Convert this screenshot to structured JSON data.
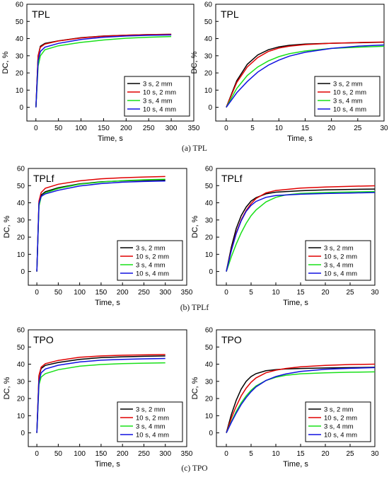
{
  "captions": [
    "(a) TPL",
    "(b) TPLf",
    "(c) TPO"
  ],
  "legend_entries": [
    "3 s, 2 mm",
    "10 s, 2 mm",
    "3 s, 4 mm",
    "10 s, 4 mm"
  ],
  "colors": {
    "3 s, 2 mm": "#000000",
    "10 s, 2 mm": "#e00000",
    "3 s, 4 mm": "#19e019",
    "10 s, 4 mm": "#1010e0"
  },
  "chart_data": [
    {
      "type": "line",
      "title": "TPL",
      "xlabel": "Time, s",
      "ylabel": "DC, %",
      "xlim": [
        -20,
        350
      ],
      "ylim": [
        -8,
        60
      ],
      "xticks": [
        0,
        50,
        100,
        150,
        200,
        250,
        300,
        350
      ],
      "yticks": [
        0,
        10,
        20,
        30,
        40,
        50,
        60
      ],
      "legend_position": "bottom-right",
      "series": [
        {
          "name": "3 s, 2 mm",
          "x": [
            0,
            5,
            10,
            20,
            50,
            100,
            150,
            200,
            250,
            300
          ],
          "y": [
            0,
            30,
            35.5,
            37.2,
            38.7,
            40.5,
            41.5,
            42,
            42.3,
            42.5
          ]
        },
        {
          "name": "10 s, 2 mm",
          "x": [
            0,
            5,
            10,
            20,
            50,
            100,
            150,
            200,
            250,
            300
          ],
          "y": [
            0,
            30,
            35,
            36.8,
            38.6,
            40.4,
            41.4,
            42,
            42.3,
            42.5
          ]
        },
        {
          "name": "3 s, 4 mm",
          "x": [
            0,
            5,
            10,
            20,
            50,
            100,
            150,
            200,
            250,
            300
          ],
          "y": [
            0,
            24,
            30,
            33.5,
            35.8,
            37.8,
            39.2,
            40.2,
            40.8,
            41.2
          ]
        },
        {
          "name": "10 s, 4 mm",
          "x": [
            0,
            5,
            10,
            20,
            50,
            100,
            150,
            200,
            250,
            300
          ],
          "y": [
            0,
            27,
            32.5,
            35,
            37.2,
            39.5,
            40.8,
            41.5,
            41.9,
            42.1
          ]
        }
      ]
    },
    {
      "type": "line",
      "title": "TPL",
      "xlabel": "Time, s",
      "ylabel": "DC, %",
      "xlim": [
        -2,
        30
      ],
      "ylim": [
        -8,
        60
      ],
      "xticks": [
        0,
        5,
        10,
        15,
        20,
        25,
        30
      ],
      "yticks": [
        0,
        10,
        20,
        30,
        40,
        50,
        60
      ],
      "legend_position": "bottom-right",
      "series": [
        {
          "name": "3 s, 2 mm",
          "x": [
            0,
            2,
            4,
            6,
            8,
            10,
            12,
            15,
            20,
            25,
            30
          ],
          "y": [
            0,
            15.5,
            25,
            30.5,
            33.5,
            35.2,
            36.1,
            36.8,
            37.3,
            37.6,
            37.9
          ]
        },
        {
          "name": "10 s, 2 mm",
          "x": [
            0,
            2,
            4,
            6,
            8,
            10,
            12,
            15,
            20,
            25,
            30
          ],
          "y": [
            0,
            14.5,
            23.5,
            29,
            32.5,
            34.5,
            35.6,
            36.5,
            37.3,
            37.7,
            38
          ]
        },
        {
          "name": "3 s, 4 mm",
          "x": [
            0,
            2,
            4,
            6,
            8,
            10,
            12,
            15,
            20,
            25,
            30
          ],
          "y": [
            0,
            11,
            18.5,
            23.5,
            27,
            29.5,
            31.2,
            32.8,
            34.3,
            35,
            35.5
          ]
        },
        {
          "name": "10 s, 4 mm",
          "x": [
            0,
            2,
            4,
            6,
            8,
            10,
            12,
            15,
            20,
            25,
            30
          ],
          "y": [
            0,
            8.5,
            15,
            20.5,
            24.5,
            27.5,
            29.8,
            32,
            34.3,
            35.6,
            36.3
          ]
        }
      ]
    },
    {
      "type": "line",
      "title": "TPLf",
      "xlabel": "Time, s",
      "ylabel": "DC, %",
      "xlim": [
        -20,
        350
      ],
      "ylim": [
        -8,
        60
      ],
      "xticks": [
        0,
        50,
        100,
        150,
        200,
        250,
        300,
        350
      ],
      "yticks": [
        0,
        10,
        20,
        30,
        40,
        50,
        60
      ],
      "legend_position": "bottom-right",
      "series": [
        {
          "name": "3 s, 2 mm",
          "x": [
            0,
            5,
            10,
            20,
            50,
            100,
            150,
            200,
            250,
            300
          ],
          "y": [
            0,
            40,
            44.5,
            46.5,
            48.8,
            51,
            52.2,
            52.8,
            53.1,
            53.3
          ]
        },
        {
          "name": "10 s, 2 mm",
          "x": [
            0,
            5,
            10,
            20,
            50,
            100,
            150,
            200,
            250,
            300
          ],
          "y": [
            0,
            41,
            46,
            48.5,
            50.8,
            52.8,
            54,
            54.6,
            55,
            55.3
          ]
        },
        {
          "name": "3 s, 4 mm",
          "x": [
            0,
            5,
            10,
            20,
            50,
            100,
            150,
            200,
            250,
            300
          ],
          "y": [
            0,
            38,
            43.5,
            45.8,
            48.3,
            50.8,
            52.1,
            52.9,
            53.4,
            53.7
          ]
        },
        {
          "name": "10 s, 4 mm",
          "x": [
            0,
            5,
            10,
            20,
            50,
            100,
            150,
            200,
            250,
            300
          ],
          "y": [
            0,
            39.5,
            43.8,
            45.2,
            47.3,
            49.8,
            51.2,
            52,
            52.4,
            52.7
          ]
        }
      ]
    },
    {
      "type": "line",
      "title": "TPLf",
      "xlabel": "Time, s",
      "ylabel": "DC, %",
      "xlim": [
        -2,
        30
      ],
      "ylim": [
        -8,
        60
      ],
      "xticks": [
        0,
        5,
        10,
        15,
        20,
        25,
        30
      ],
      "yticks": [
        0,
        10,
        20,
        30,
        40,
        50,
        60
      ],
      "legend_position": "bottom-right",
      "series": [
        {
          "name": "3 s, 2 mm",
          "x": [
            0,
            1,
            2,
            3,
            4,
            5,
            6,
            8,
            10,
            15,
            20,
            25,
            30
          ],
          "y": [
            0,
            14,
            25,
            32.5,
            37.5,
            41,
            43,
            45.2,
            46.2,
            47,
            47.5,
            47.8,
            48
          ]
        },
        {
          "name": "10 s, 2 mm",
          "x": [
            0,
            1,
            2,
            3,
            4,
            5,
            6,
            8,
            10,
            15,
            20,
            25,
            30
          ],
          "y": [
            0,
            12.5,
            22.5,
            30,
            35.5,
            39.5,
            42.5,
            45.8,
            47.2,
            48.6,
            49.2,
            49.6,
            49.9
          ]
        },
        {
          "name": "3 s, 4 mm",
          "x": [
            0,
            1,
            2,
            3,
            4,
            5,
            6,
            8,
            10,
            12,
            15,
            20,
            25,
            30
          ],
          "y": [
            0,
            8.5,
            16,
            22.5,
            28,
            32.5,
            35.8,
            40.5,
            43.2,
            44.6,
            45.5,
            46,
            46.3,
            46.5
          ]
        },
        {
          "name": "10 s, 4 mm",
          "x": [
            0,
            1,
            2,
            3,
            4,
            5,
            6,
            8,
            10,
            15,
            20,
            25,
            30
          ],
          "y": [
            0,
            12,
            22,
            29.5,
            35,
            38.5,
            40.8,
            43.2,
            44.2,
            45,
            45.4,
            45.7,
            46
          ]
        }
      ]
    },
    {
      "type": "line",
      "title": "TPO",
      "xlabel": "Time, s",
      "ylabel": "DC, %",
      "xlim": [
        -20,
        350
      ],
      "ylim": [
        -8,
        60
      ],
      "xticks": [
        0,
        50,
        100,
        150,
        200,
        250,
        300,
        350
      ],
      "yticks": [
        0,
        10,
        20,
        30,
        40,
        50,
        60
      ],
      "legend_position": "bottom-right",
      "series": [
        {
          "name": "3 s, 2 mm",
          "x": [
            0,
            5,
            10,
            20,
            50,
            100,
            150,
            200,
            250,
            300
          ],
          "y": [
            0,
            33,
            37.5,
            39.3,
            41,
            42.8,
            43.8,
            44.3,
            44.6,
            44.8
          ]
        },
        {
          "name": "10 s, 2 mm",
          "x": [
            0,
            5,
            10,
            20,
            50,
            100,
            150,
            200,
            250,
            300
          ],
          "y": [
            0,
            33.5,
            38.3,
            40.3,
            42.2,
            44,
            44.8,
            45.2,
            45.4,
            45.6
          ]
        },
        {
          "name": "3 s, 4 mm",
          "x": [
            0,
            5,
            10,
            20,
            50,
            100,
            150,
            200,
            250,
            300
          ],
          "y": [
            0,
            28,
            32.5,
            34.5,
            36.8,
            38.8,
            39.8,
            40.3,
            40.6,
            40.8
          ]
        },
        {
          "name": "10 s, 4 mm",
          "x": [
            0,
            5,
            10,
            20,
            50,
            100,
            150,
            200,
            250,
            300
          ],
          "y": [
            0,
            30,
            35,
            37.2,
            39.4,
            41.3,
            42.3,
            42.8,
            43.1,
            43.3
          ]
        }
      ]
    },
    {
      "type": "line",
      "title": "TPO",
      "xlabel": "Time, s",
      "ylabel": "DC, %",
      "xlim": [
        -2,
        30
      ],
      "ylim": [
        -8,
        60
      ],
      "xticks": [
        0,
        5,
        10,
        15,
        20,
        25,
        30
      ],
      "yticks": [
        0,
        10,
        20,
        30,
        40,
        50,
        60
      ],
      "legend_position": "bottom-right",
      "series": [
        {
          "name": "3 s, 2 mm",
          "x": [
            0,
            1,
            2,
            3,
            4,
            5,
            6,
            8,
            10,
            12,
            15,
            20,
            25,
            30
          ],
          "y": [
            0,
            10.5,
            19,
            25.5,
            30,
            32.8,
            34.5,
            36.2,
            36.8,
            37.2,
            37.5,
            37.8,
            38,
            38.2
          ]
        },
        {
          "name": "10 s, 2 mm",
          "x": [
            0,
            1,
            2,
            3,
            4,
            5,
            6,
            8,
            10,
            12,
            15,
            20,
            25,
            30
          ],
          "y": [
            0,
            8.5,
            15.5,
            21.5,
            26,
            29.5,
            32,
            35,
            36.5,
            37.5,
            38.5,
            39.3,
            39.8,
            40
          ]
        },
        {
          "name": "3 s, 4 mm",
          "x": [
            0,
            1,
            2,
            3,
            4,
            5,
            6,
            8,
            10,
            12,
            15,
            20,
            25,
            30
          ],
          "y": [
            0,
            6.5,
            12.5,
            17.5,
            21.5,
            24.8,
            27.3,
            30.5,
            32.4,
            33.5,
            34.4,
            35,
            35.3,
            35.5
          ]
        },
        {
          "name": "10 s, 4 mm",
          "x": [
            0,
            1,
            2,
            3,
            4,
            5,
            6,
            8,
            10,
            12,
            15,
            20,
            25,
            30
          ],
          "y": [
            0,
            6,
            11.5,
            16.5,
            20.5,
            24,
            26.8,
            30.5,
            32.8,
            34.3,
            35.8,
            37,
            37.6,
            38
          ]
        }
      ]
    }
  ]
}
